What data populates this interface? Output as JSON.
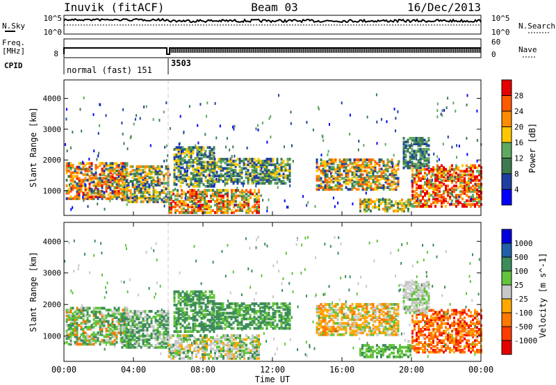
{
  "header": {
    "station": "Inuvik (fitACF)",
    "beam": "Beam 03",
    "date": "16/Dec/2013"
  },
  "noise_panel": {
    "left_label": "N.Sky",
    "right_label": "N.Search",
    "left_ticks": [
      "10^5",
      "10^0"
    ],
    "right_ticks": [
      "10^5",
      "10^0"
    ]
  },
  "freq_panel": {
    "left_label_1": "Freq.",
    "left_label_2": "[MHz]",
    "left_tick": "8",
    "right_label": "Nave",
    "right_ticks": [
      "60",
      "0"
    ]
  },
  "cpid_panel": {
    "label": "CPID",
    "programs": [
      {
        "name": "normal (fast) 151",
        "start": "00:00",
        "end": "06:00"
      },
      {
        "name": "3503",
        "start": "06:00",
        "end": "24:00"
      }
    ]
  },
  "colors": {
    "power": [
      "#0000ff",
      "#1f3fa0",
      "#3d7a4e",
      "#5fa860",
      "#ffc800",
      "#ff8c00",
      "#ff5a00",
      "#e60000"
    ],
    "velocity": [
      "#0000dc",
      "#215fa8",
      "#3d8c5a",
      "#63c33c",
      "#c8c8c8",
      "#ffa800",
      "#ff7800",
      "#ff3c00",
      "#e60000"
    ]
  },
  "chart_data": [
    {
      "type": "heatmap",
      "panel": "power",
      "ylabel": "Slant Range [km]",
      "yticks": [
        "1000",
        "2000",
        "3000",
        "4000"
      ],
      "ylim": [
        200,
        4600
      ],
      "xlim": [
        "00:00",
        "24:00"
      ],
      "colorbar_label": "Power [dB]",
      "colorbar_ticks": [
        "4",
        "8",
        "12",
        "16",
        "20",
        "24",
        "28"
      ]
    },
    {
      "type": "heatmap",
      "panel": "velocity",
      "ylabel": "Slant Range [km]",
      "yticks": [
        "1000",
        "2000",
        "3000",
        "4000"
      ],
      "ylim": [
        200,
        4600
      ],
      "xlim": [
        "00:00",
        "24:00"
      ],
      "colorbar_label": "Velocity [m s^-1]",
      "colorbar_ticks": [
        "1000",
        "500",
        "100",
        "25",
        "-25",
        "-100",
        "-500",
        "-1000"
      ]
    }
  ],
  "xaxis": {
    "label": "Time UT",
    "ticks": [
      "00:00",
      "04:00",
      "08:00",
      "12:00",
      "16:00",
      "20:00",
      "00:00"
    ]
  }
}
